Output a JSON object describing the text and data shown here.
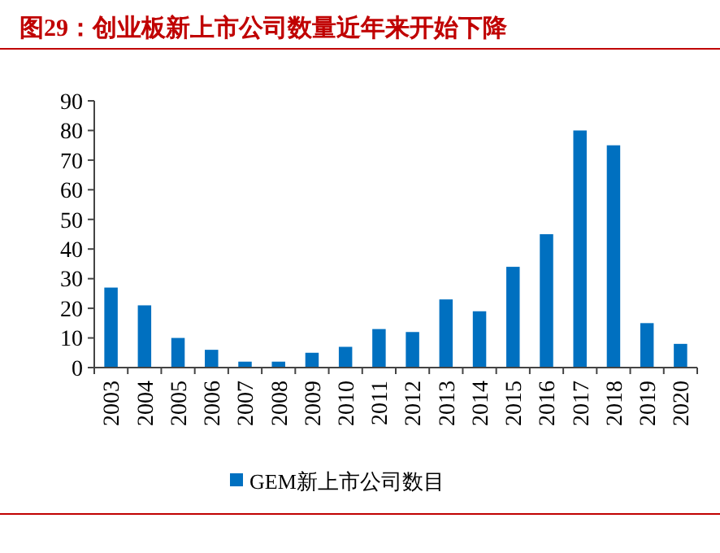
{
  "chart_data": {
    "type": "bar",
    "title": "图29：创业板新上市公司数量近年来开始下降",
    "categories": [
      "2003",
      "2004",
      "2005",
      "2006",
      "2007",
      "2008",
      "2009",
      "2010",
      "2011",
      "2012",
      "2013",
      "2014",
      "2015",
      "2016",
      "2017",
      "2018",
      "2019",
      "2020"
    ],
    "series": [
      {
        "name": "GEM新上市公司数目",
        "color": "#0070c0",
        "values": [
          27,
          21,
          10,
          6,
          2,
          2,
          5,
          7,
          13,
          12,
          23,
          19,
          34,
          45,
          80,
          75,
          15,
          8
        ]
      }
    ],
    "ylim": [
      0,
      90
    ],
    "yticks": [
      0,
      10,
      20,
      30,
      40,
      50,
      60,
      70,
      80,
      90
    ],
    "grid": false,
    "legend": "bottom"
  }
}
